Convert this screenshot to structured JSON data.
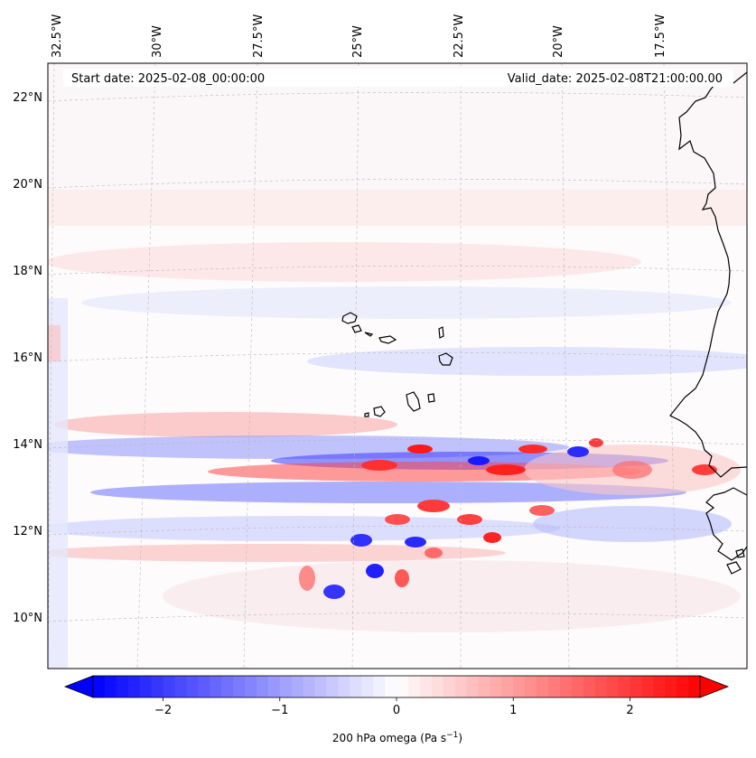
{
  "map": {
    "start_date": "Start date: 2025-02-08_00:00:00",
    "valid_date": "Valid_date: 2025-02-08T21:00:00.00",
    "lon_labels": [
      "32.5°W",
      "30°W",
      "27.5°W",
      "25°W",
      "22.5°W",
      "20°W",
      "17.5°W"
    ],
    "lat_labels": [
      "22°N",
      "20°N",
      "18°N",
      "16°N",
      "14°N",
      "12°N",
      "10°N"
    ]
  },
  "colorbar": {
    "ticks": [
      "−2",
      "−1",
      "0",
      "1",
      "2"
    ],
    "tick_values": [
      -2,
      -1,
      0,
      1,
      2
    ],
    "range": [
      -2.6,
      2.6
    ],
    "label_main": "200 hPa omega (Pa s",
    "label_sup": "−1",
    "label_end": ")",
    "low_color": "#0000ff",
    "mid_color": "#ffffff",
    "high_color": "#ff0000"
  }
}
